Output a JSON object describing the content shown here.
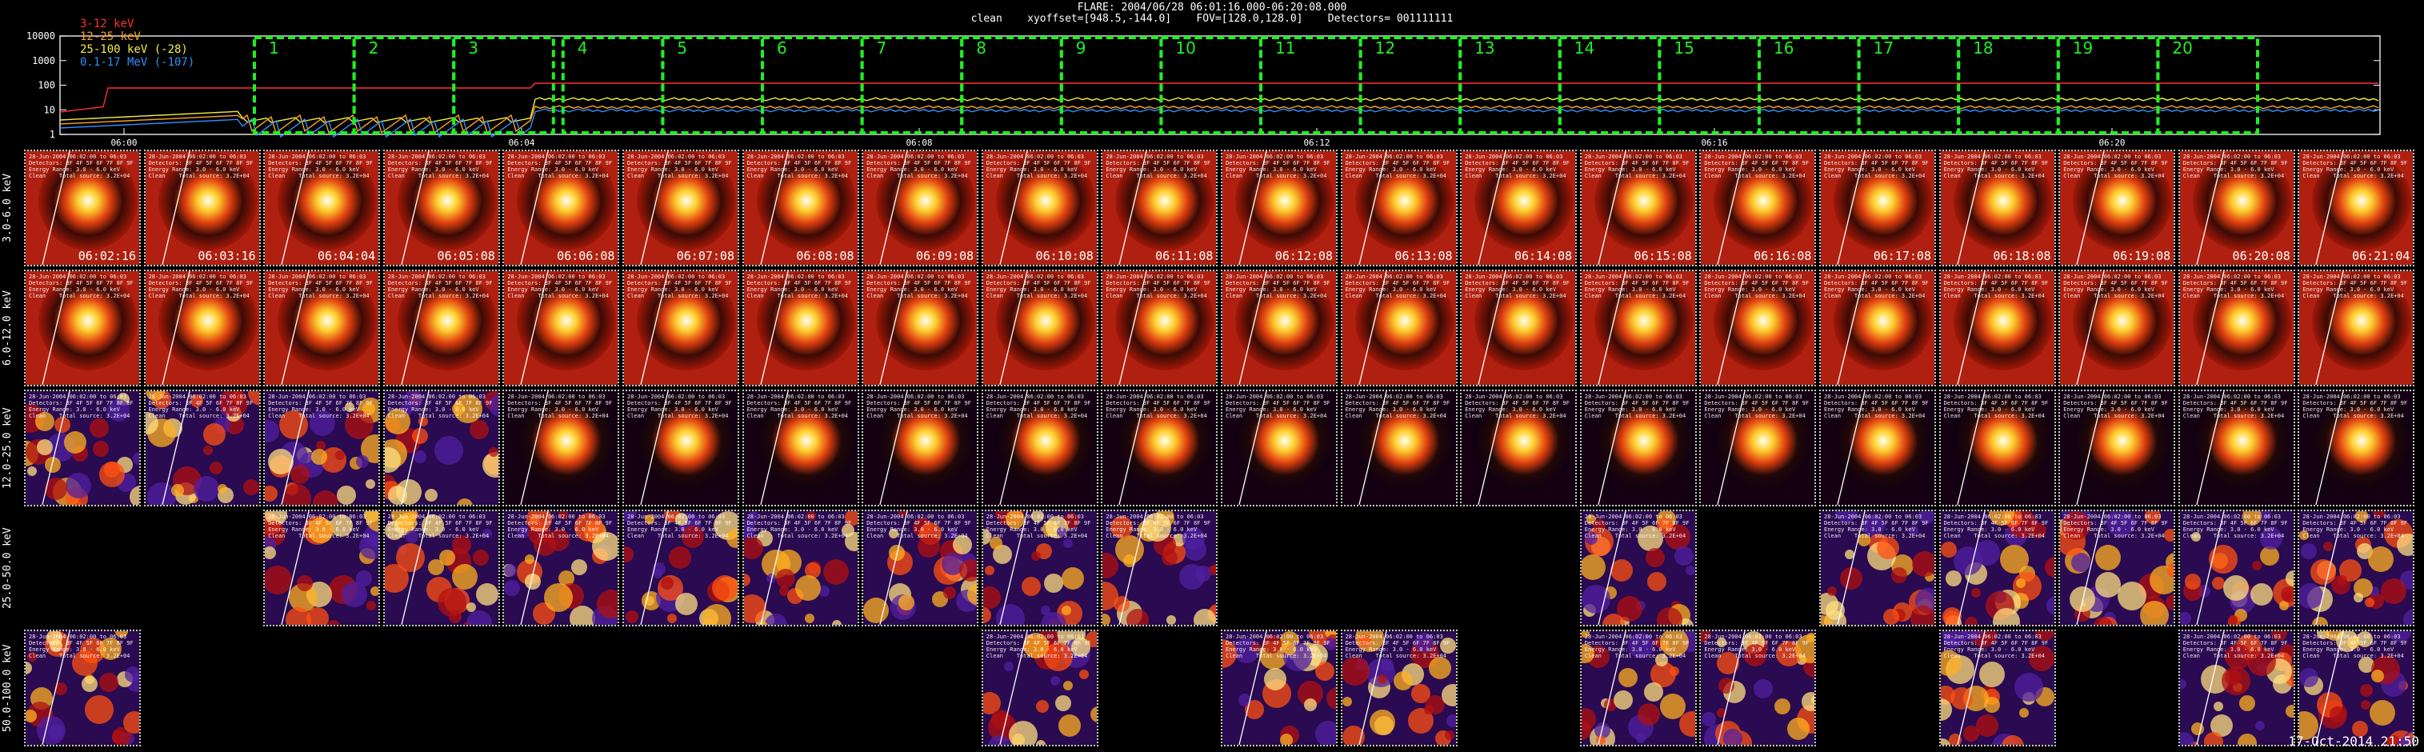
{
  "header": {
    "title": "FLARE: 2004/06/28 06:01:16.000-06:20:08.000",
    "subtitle": "clean    xyoffset=[948.5,-144.0]    FOV=[128.0,128.0]    Detectors= 001111111"
  },
  "lightcurve": {
    "y_ticks": [
      "10000",
      "1000",
      "100",
      "10",
      "1"
    ],
    "x_ticks": [
      "06:00",
      "06:04",
      "06:08",
      "06:12",
      "06:16",
      "06:20"
    ],
    "legend": [
      {
        "label": "3-12 keV",
        "color": "#ff3030"
      },
      {
        "label": "12-25 keV",
        "color": "#ffa020"
      },
      {
        "label": "25-100 keV (-28)",
        "color": "#f0f040"
      },
      {
        "label": "0.1-17 MeV (-107)",
        "color": "#3090ff"
      }
    ],
    "intervals": [
      "1",
      "2",
      "3",
      "4",
      "5",
      "6",
      "7",
      "8",
      "9",
      "10",
      "11",
      "12",
      "13",
      "14",
      "15",
      "16",
      "17",
      "18",
      "19",
      "20"
    ],
    "box_color": "#22ee22"
  },
  "rows": [
    {
      "label": "3.0-6.0 keV",
      "kind": "thermal",
      "cols": [
        0,
        1,
        2,
        3,
        4,
        5,
        6,
        7,
        8,
        9,
        10,
        11,
        12,
        13,
        14,
        15,
        16,
        17,
        18,
        19
      ]
    },
    {
      "label": "6.0-12.0 keV",
      "kind": "thermal",
      "cols": [
        0,
        1,
        2,
        3,
        4,
        5,
        6,
        7,
        8,
        9,
        10,
        11,
        12,
        13,
        14,
        15,
        16,
        17,
        18,
        19
      ]
    },
    {
      "label": "12.0-25.0 keV",
      "kind": "mixed",
      "cols": [
        0,
        1,
        2,
        3,
        4,
        5,
        6,
        7,
        8,
        9,
        10,
        11,
        12,
        13,
        14,
        15,
        16,
        17,
        18,
        19
      ]
    },
    {
      "label": "25.0-50.0 keV",
      "kind": "noise",
      "cols": [
        2,
        3,
        4,
        5,
        6,
        7,
        8,
        9,
        13,
        15,
        16,
        17,
        18,
        19
      ]
    },
    {
      "label": "50.0-100.0 keV",
      "kind": "noise",
      "cols": [
        0,
        8,
        10,
        11,
        13,
        14,
        16,
        18,
        19
      ]
    }
  ],
  "times": [
    "06:02:16",
    "06:03:16",
    "06:04:04",
    "06:05:08",
    "06:06:08",
    "06:07:08",
    "06:08:08",
    "06:09:08",
    "06:10:08",
    "06:11:08",
    "06:12:08",
    "06:13:08",
    "06:14:08",
    "06:15:08",
    "06:16:08",
    "06:17:08",
    "06:18:08",
    "06:19:08",
    "06:20:08",
    "06:21:04"
  ],
  "tile_info": "28-Jun-2004 06:02:00 to 06:03\nDetectors: 3F 4F 5F 6F 7F 8F 9F\nEnergy Range: 3.0 - 6.0 keV\nClean    Total source: 3.2E+04",
  "footer": {
    "stamp": "17-Oct-2014 21:50"
  }
}
